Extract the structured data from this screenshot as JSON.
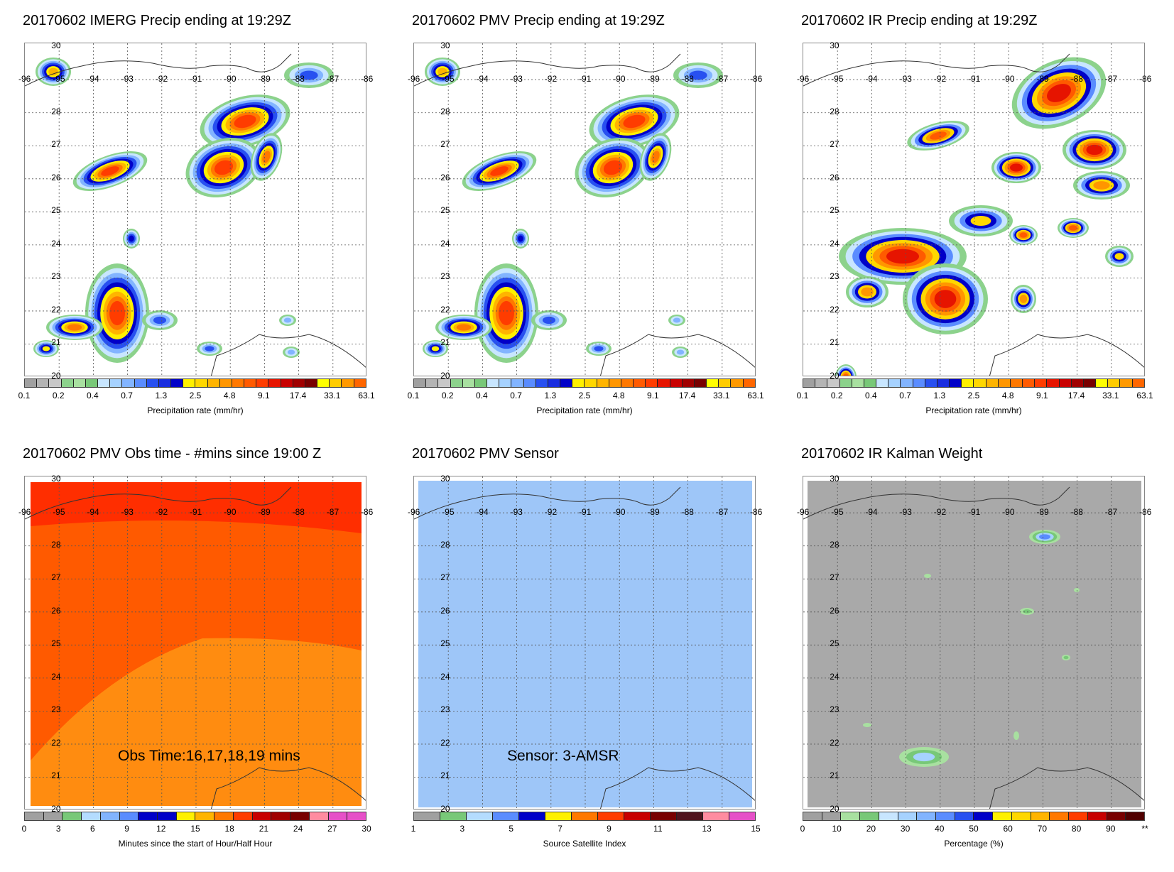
{
  "panels": [
    {
      "title": "20170602 IMERG Precip ending at 19:29Z",
      "colorbar_title": "Precipitation rate (mm/hr)",
      "colorbar_ticks": [
        "0.1",
        "0.2",
        "0.4",
        "0.7",
        "1.3",
        "2.5",
        "4.8",
        "9.1",
        "17.4",
        "33.1",
        "63.1"
      ],
      "field": "precip"
    },
    {
      "title": "20170602 PMV Precip ending at 19:29Z",
      "colorbar_title": "Precipitation rate (mm/hr)",
      "colorbar_ticks": [
        "0.1",
        "0.2",
        "0.4",
        "0.7",
        "1.3",
        "2.5",
        "4.8",
        "9.1",
        "17.4",
        "33.1",
        "63.1"
      ],
      "field": "precip"
    },
    {
      "title": "20170602 IR Precip ending at 19:29Z",
      "colorbar_title": "Precipitation rate (mm/hr)",
      "colorbar_ticks": [
        "0.1",
        "0.2",
        "0.4",
        "0.7",
        "1.3",
        "2.5",
        "4.8",
        "9.1",
        "17.4",
        "33.1",
        "63.1"
      ],
      "field": "precip_ir"
    },
    {
      "title": "20170602 PMV Obs time - #mins since 19:00 Z",
      "colorbar_title": "Minutes since the start of Hour/Half Hour",
      "colorbar_ticks": [
        "0",
        "3",
        "6",
        "9",
        "12",
        "15",
        "18",
        "21",
        "24",
        "27",
        "30"
      ],
      "overlay_text": "Obs Time:16,17,18,19 mins",
      "field": "obstime"
    },
    {
      "title": "20170602 PMV Sensor",
      "colorbar_title": "Source Satellite Index",
      "colorbar_ticks": [
        "1",
        "3",
        "5",
        "7",
        "9",
        "11",
        "13",
        "15"
      ],
      "overlay_text": "Sensor:  3-AMSR",
      "field": "sensor"
    },
    {
      "title": "20170602 IR Kalman Weight",
      "colorbar_title": "Percentage (%)",
      "colorbar_ticks": [
        "0",
        "10",
        "20",
        "30",
        "40",
        "50",
        "60",
        "70",
        "80",
        "90",
        "**"
      ],
      "field": "kalman"
    }
  ],
  "map": {
    "lon_labels": [
      "-96",
      "-95",
      "-94",
      "-93",
      "-92",
      "-91",
      "-90",
      "-89",
      "-88",
      "-87",
      "-86"
    ],
    "lat_labels": [
      "30",
      "28",
      "27",
      "26",
      "25",
      "24",
      "23",
      "22",
      "21",
      "20"
    ]
  },
  "colors": {
    "precip_scale": [
      "#a0a0a0",
      "#b4b4b4",
      "#c8c8c8",
      "#8cd28c",
      "#a8e0a0",
      "#78c878",
      "#c8e6ff",
      "#a6d2ff",
      "#82b4ff",
      "#5a8cff",
      "#2850f0",
      "#1a2ee0",
      "#0000c8",
      "#fff000",
      "#ffd700",
      "#ffb400",
      "#ff9600",
      "#ff7800",
      "#ff5a00",
      "#ff3c00",
      "#e61400",
      "#c80000",
      "#a00000",
      "#780000",
      "#ffff00",
      "#ffcc00",
      "#ff9900",
      "#ff6600"
    ],
    "obstime_scale": [
      "#a0a0a0",
      "#a0a0a0",
      "#78c878",
      "#b4dcff",
      "#82b4ff",
      "#5a8cff",
      "#0000c8",
      "#0000c8",
      "#fff000",
      "#ffb400",
      "#ff7800",
      "#ff3c00",
      "#c80000",
      "#a00000",
      "#780000",
      "#ff8ca0",
      "#e650c8",
      "#e650c8"
    ],
    "sensor_scale": [
      "#a0a0a0",
      "#78c878",
      "#b4dcff",
      "#5a8cff",
      "#0000c8",
      "#fff000",
      "#ff7800",
      "#ff3c00",
      "#c80000",
      "#780000",
      "#50141e",
      "#ff8ca0",
      "#e650c8"
    ],
    "kalman_scale": [
      "#a0a0a0",
      "#a0a0a0",
      "#a8e0a0",
      "#78c878",
      "#c8e6ff",
      "#a6d2ff",
      "#82b4ff",
      "#5a8cff",
      "#2850f0",
      "#0000c8",
      "#fff000",
      "#ffd700",
      "#ffb400",
      "#ff7800",
      "#ff3c00",
      "#c80000",
      "#780000",
      "#500000"
    ],
    "sensor_fill": "#9ec6f8",
    "kalman_fill": "#a9a9a9",
    "obs_dark": "#ff2e00",
    "obs_mid": "#ff5a00",
    "obs_light": "#ff8c10"
  }
}
